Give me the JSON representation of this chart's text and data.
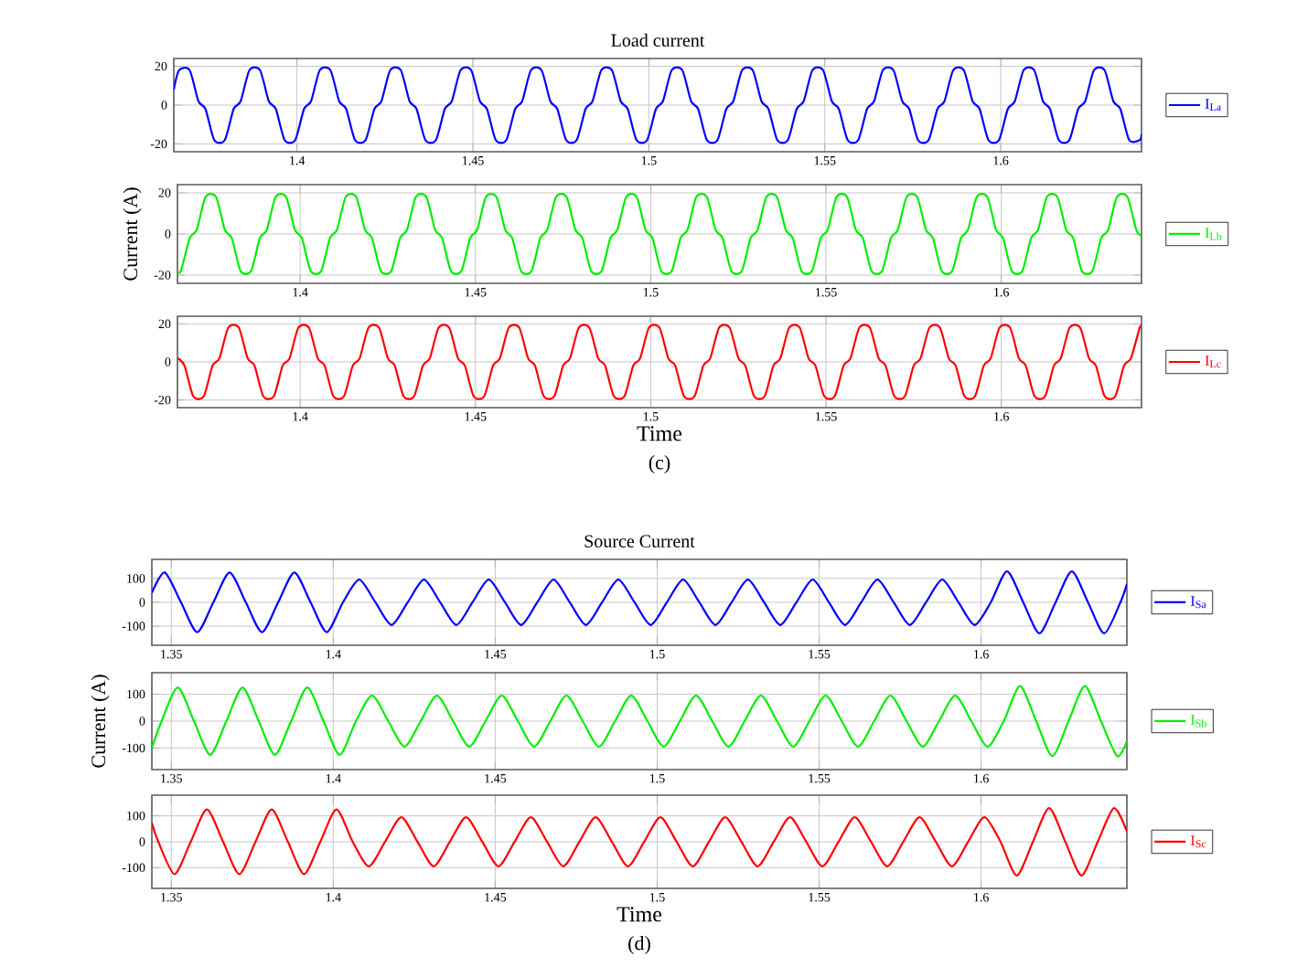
{
  "chart_data": [
    {
      "type": "line",
      "title": "Load current",
      "xlim": [
        1.365,
        1.64
      ],
      "ylim": [
        -24,
        24
      ],
      "xticks": [
        1.4,
        1.45,
        1.5,
        1.55,
        1.6
      ],
      "yticks": [
        -20,
        0,
        20
      ],
      "grid": true,
      "legend": "right",
      "series": [
        {
          "name": "I$_{La}$",
          "color": "#0000ff",
          "x": [
            1.365,
            1.3665,
            1.3695,
            1.372,
            1.374,
            1.3765,
            1.3795,
            1.382,
            1.384,
            1.3865,
            1.3895,
            1.392,
            1.394,
            1.3965,
            1.3995,
            1.402,
            1.404,
            1.4065,
            1.4095,
            1.412,
            1.414,
            1.4165,
            1.4195,
            1.422,
            1.424,
            1.4265,
            1.4295,
            1.432,
            1.434,
            1.4365,
            1.4395,
            1.442,
            1.444,
            1.4465,
            1.4495,
            1.452,
            1.454,
            1.4565,
            1.4595,
            1.462,
            1.464,
            1.4665,
            1.4695,
            1.472,
            1.474,
            1.4765,
            1.4795,
            1.482,
            1.484,
            1.4865,
            1.4895,
            1.492,
            1.494,
            1.4965,
            1.4995,
            1.502,
            1.504,
            1.5065,
            1.5095,
            1.512,
            1.514,
            1.5165,
            1.5195,
            1.522,
            1.524,
            1.5265,
            1.5295,
            1.532,
            1.534,
            1.5365,
            1.5395,
            1.542,
            1.544,
            1.5465,
            1.5495,
            1.552,
            1.554,
            1.5565,
            1.5595,
            1.562,
            1.564,
            1.5665,
            1.5695,
            1.572,
            1.574,
            1.5765,
            1.5795,
            1.582,
            1.584,
            1.5865,
            1.5895,
            1.592,
            1.594,
            1.5965,
            1.5995,
            1.602,
            1.604,
            1.6065,
            1.6095,
            1.612,
            1.614,
            1.6165,
            1.6195,
            1.622,
            1.624,
            1.6265,
            1.6295,
            1.632,
            1.634,
            1.6365,
            1.6395,
            1.64
          ],
          "values": [
            8,
            18,
            18,
            2,
            -2,
            -18,
            -18,
            -2,
            2,
            18,
            18,
            2,
            -2,
            -18,
            -18,
            -2,
            2,
            18,
            18,
            2,
            -2,
            -18,
            -18,
            -2,
            2,
            18,
            18,
            2,
            -2,
            -18,
            -18,
            -2,
            2,
            18,
            18,
            2,
            -2,
            -18,
            -18,
            -2,
            2,
            18,
            18,
            2,
            -2,
            -18,
            -18,
            -2,
            2,
            18,
            18,
            2,
            -2,
            -18,
            -18,
            -2,
            2,
            18,
            18,
            2,
            -2,
            -18,
            -18,
            -2,
            2,
            18,
            18,
            2,
            -2,
            -18,
            -18,
            -2,
            2,
            18,
            18,
            2,
            -2,
            -18,
            -18,
            -2,
            2,
            18,
            18,
            2,
            -2,
            -18,
            -18,
            -2,
            2,
            18,
            18,
            2,
            -2,
            -18,
            -18,
            -2,
            2,
            18,
            18,
            2,
            -2,
            -18,
            -18,
            -2,
            2,
            18,
            18,
            2,
            -2,
            -18,
            -18,
            -15
          ]
        }
      ]
    },
    {
      "type": "line",
      "ylabel": "Current (A)",
      "xlim": [
        1.365,
        1.64
      ],
      "ylim": [
        -24,
        24
      ],
      "xticks": [
        1.4,
        1.45,
        1.5,
        1.55,
        1.6
      ],
      "yticks": [
        -20,
        0,
        20
      ],
      "grid": true,
      "legend": "right",
      "series": [
        {
          "name": "I$_{Lb}$",
          "color": "#00ee00",
          "x": [
            1.365,
            1.366,
            1.3685,
            1.3705,
            1.373,
            1.376,
            1.3785,
            1.3805,
            1.383,
            1.386,
            1.3885,
            1.3905,
            1.393,
            1.396,
            1.3985,
            1.4005,
            1.403,
            1.406,
            1.4085,
            1.4105,
            1.413,
            1.416,
            1.4185,
            1.4205,
            1.423,
            1.426,
            1.4285,
            1.4305,
            1.433,
            1.436,
            1.4385,
            1.4405,
            1.443,
            1.446,
            1.4485,
            1.4505,
            1.453,
            1.456,
            1.4585,
            1.4605,
            1.463,
            1.466,
            1.4685,
            1.4705,
            1.473,
            1.476,
            1.4785,
            1.4805,
            1.483,
            1.486,
            1.4885,
            1.4905,
            1.493,
            1.496,
            1.4985,
            1.5005,
            1.503,
            1.506,
            1.5085,
            1.5105,
            1.513,
            1.516,
            1.5185,
            1.5205,
            1.523,
            1.526,
            1.5285,
            1.5305,
            1.533,
            1.536,
            1.5385,
            1.5405,
            1.543,
            1.546,
            1.5485,
            1.5505,
            1.553,
            1.556,
            1.5585,
            1.5605,
            1.563,
            1.566,
            1.5685,
            1.5705,
            1.573,
            1.576,
            1.5785,
            1.5805,
            1.583,
            1.586,
            1.5885,
            1.5905,
            1.593,
            1.596,
            1.5985,
            1.6005,
            1.603,
            1.606,
            1.6085,
            1.6105,
            1.613,
            1.616,
            1.6185,
            1.6205,
            1.623,
            1.626,
            1.6285,
            1.6305,
            1.633,
            1.636,
            1.6385,
            1.64
          ],
          "values": [
            -18,
            -18,
            -2,
            2,
            18,
            18,
            2,
            -2,
            -18,
            -18,
            -2,
            2,
            18,
            18,
            2,
            -2,
            -18,
            -18,
            -2,
            2,
            18,
            18,
            2,
            -2,
            -18,
            -18,
            -2,
            2,
            18,
            18,
            2,
            -2,
            -18,
            -18,
            -2,
            2,
            18,
            18,
            2,
            -2,
            -18,
            -18,
            -2,
            2,
            18,
            18,
            2,
            -2,
            -18,
            -18,
            -2,
            2,
            18,
            18,
            2,
            -2,
            -18,
            -18,
            -2,
            2,
            18,
            18,
            2,
            -2,
            -18,
            -18,
            -2,
            2,
            18,
            18,
            2,
            -2,
            -18,
            -18,
            -2,
            2,
            18,
            18,
            2,
            -2,
            -18,
            -18,
            -2,
            2,
            18,
            18,
            2,
            -2,
            -18,
            -18,
            -2,
            2,
            18,
            18,
            2,
            -2,
            -18,
            -18,
            -2,
            2,
            18,
            18,
            2,
            -2,
            -18,
            -18,
            -2,
            2,
            18,
            18,
            2,
            -1
          ]
        }
      ]
    },
    {
      "type": "line",
      "xlabel": "Time",
      "annotations": [
        "(c)"
      ],
      "xlim": [
        1.365,
        1.64
      ],
      "ylim": [
        -24,
        24
      ],
      "xticks": [
        1.4,
        1.45,
        1.5,
        1.55,
        1.6
      ],
      "yticks": [
        -20,
        0,
        20
      ],
      "grid": true,
      "legend": "right",
      "series": [
        {
          "name": "I$_{Lc}$",
          "color": "#ff0000",
          "x": [
            1.365,
            1.367,
            1.3695,
            1.3725,
            1.375,
            1.377,
            1.3795,
            1.3825,
            1.385,
            1.387,
            1.3895,
            1.3925,
            1.395,
            1.397,
            1.3995,
            1.4025,
            1.405,
            1.407,
            1.4095,
            1.4125,
            1.415,
            1.417,
            1.4195,
            1.4225,
            1.425,
            1.427,
            1.4295,
            1.4325,
            1.435,
            1.437,
            1.4395,
            1.4425,
            1.445,
            1.447,
            1.4495,
            1.4525,
            1.455,
            1.457,
            1.4595,
            1.4625,
            1.465,
            1.467,
            1.4695,
            1.4725,
            1.475,
            1.477,
            1.4795,
            1.4825,
            1.485,
            1.487,
            1.4895,
            1.4925,
            1.495,
            1.497,
            1.4995,
            1.5025,
            1.505,
            1.507,
            1.5095,
            1.5125,
            1.515,
            1.517,
            1.5195,
            1.5225,
            1.525,
            1.527,
            1.5295,
            1.5325,
            1.535,
            1.537,
            1.5395,
            1.5425,
            1.545,
            1.547,
            1.5495,
            1.5525,
            1.555,
            1.557,
            1.5595,
            1.5625,
            1.565,
            1.567,
            1.5695,
            1.5725,
            1.575,
            1.577,
            1.5795,
            1.5825,
            1.585,
            1.587,
            1.5895,
            1.5925,
            1.595,
            1.597,
            1.5995,
            1.6025,
            1.605,
            1.607,
            1.6095,
            1.6125,
            1.615,
            1.617,
            1.6195,
            1.6225,
            1.625,
            1.627,
            1.6295,
            1.6325,
            1.635,
            1.637,
            1.6395,
            1.64
          ],
          "values": [
            2,
            -2,
            -18,
            -18,
            -2,
            2,
            18,
            18,
            2,
            -2,
            -18,
            -18,
            -2,
            2,
            18,
            18,
            2,
            -2,
            -18,
            -18,
            -2,
            2,
            18,
            18,
            2,
            -2,
            -18,
            -18,
            -2,
            2,
            18,
            18,
            2,
            -2,
            -18,
            -18,
            -2,
            2,
            18,
            18,
            2,
            -2,
            -18,
            -18,
            -2,
            2,
            18,
            18,
            2,
            -2,
            -18,
            -18,
            -2,
            2,
            18,
            18,
            2,
            -2,
            -18,
            -18,
            -2,
            2,
            18,
            18,
            2,
            -2,
            -18,
            -18,
            -2,
            2,
            18,
            18,
            2,
            -2,
            -18,
            -18,
            -2,
            2,
            18,
            18,
            2,
            -2,
            -18,
            -18,
            -2,
            2,
            18,
            18,
            2,
            -2,
            -18,
            -18,
            -2,
            2,
            18,
            18,
            2,
            -2,
            -18,
            -18,
            -2,
            2,
            18,
            18,
            2,
            -2,
            -18,
            -18,
            -2,
            2,
            18,
            18
          ]
        }
      ]
    },
    {
      "type": "line",
      "title": "Source Current",
      "xlim": [
        1.344,
        1.645
      ],
      "ylim": [
        -180,
        180
      ],
      "xticks": [
        1.35,
        1.4,
        1.45,
        1.5,
        1.55,
        1.6
      ],
      "yticks": [
        -100,
        0,
        100
      ],
      "grid": true,
      "legend": "right",
      "series": [
        {
          "name": "I$_{Sa}$",
          "color": "#0000ff",
          "x": [
            1.344,
            1.348,
            1.353,
            1.358,
            1.363,
            1.368,
            1.373,
            1.378,
            1.383,
            1.388,
            1.393,
            1.398,
            1.403,
            1.408,
            1.413,
            1.418,
            1.423,
            1.428,
            1.433,
            1.438,
            1.443,
            1.448,
            1.453,
            1.458,
            1.463,
            1.468,
            1.473,
            1.478,
            1.483,
            1.488,
            1.493,
            1.498,
            1.503,
            1.508,
            1.513,
            1.518,
            1.523,
            1.528,
            1.533,
            1.538,
            1.543,
            1.548,
            1.553,
            1.558,
            1.563,
            1.568,
            1.573,
            1.578,
            1.583,
            1.588,
            1.593,
            1.598,
            1.603,
            1.608,
            1.613,
            1.618,
            1.623,
            1.628,
            1.633,
            1.638,
            1.643,
            1.645
          ],
          "values": [
            40,
            125,
            0,
            -125,
            0,
            125,
            0,
            -125,
            0,
            125,
            0,
            -125,
            0,
            95,
            0,
            -95,
            0,
            95,
            0,
            -95,
            0,
            95,
            0,
            -95,
            0,
            95,
            0,
            -95,
            0,
            95,
            0,
            -95,
            0,
            95,
            0,
            -95,
            0,
            95,
            0,
            -95,
            0,
            95,
            0,
            -95,
            0,
            95,
            0,
            -95,
            0,
            95,
            0,
            -95,
            0,
            130,
            0,
            -130,
            0,
            130,
            0,
            -130,
            0,
            76
          ]
        }
      ]
    },
    {
      "type": "line",
      "ylabel": "Current (A)",
      "xlim": [
        1.344,
        1.645
      ],
      "ylim": [
        -180,
        180
      ],
      "xticks": [
        1.35,
        1.4,
        1.45,
        1.5,
        1.55,
        1.6
      ],
      "yticks": [
        -100,
        0,
        100
      ],
      "grid": true,
      "legend": "right",
      "series": [
        {
          "name": "I$_{Sb}$",
          "color": "#00ee00",
          "x": [
            1.344,
            1.347,
            1.352,
            1.357,
            1.362,
            1.367,
            1.372,
            1.377,
            1.382,
            1.387,
            1.392,
            1.397,
            1.402,
            1.407,
            1.412,
            1.417,
            1.422,
            1.427,
            1.432,
            1.437,
            1.442,
            1.447,
            1.452,
            1.457,
            1.462,
            1.467,
            1.472,
            1.477,
            1.482,
            1.487,
            1.492,
            1.497,
            1.502,
            1.507,
            1.512,
            1.517,
            1.522,
            1.527,
            1.532,
            1.537,
            1.542,
            1.547,
            1.552,
            1.557,
            1.562,
            1.567,
            1.572,
            1.577,
            1.582,
            1.587,
            1.592,
            1.597,
            1.602,
            1.607,
            1.612,
            1.617,
            1.622,
            1.627,
            1.632,
            1.637,
            1.642,
            1.645
          ],
          "values": [
            -100,
            0,
            125,
            0,
            -125,
            0,
            125,
            0,
            -125,
            0,
            125,
            0,
            -125,
            0,
            95,
            0,
            -95,
            0,
            95,
            0,
            -95,
            0,
            95,
            0,
            -95,
            0,
            95,
            0,
            -95,
            0,
            95,
            0,
            -95,
            0,
            95,
            0,
            -95,
            0,
            95,
            0,
            -95,
            0,
            95,
            0,
            -95,
            0,
            95,
            0,
            -95,
            0,
            95,
            0,
            -95,
            0,
            130,
            0,
            -130,
            0,
            130,
            0,
            -130,
            -76
          ]
        }
      ]
    },
    {
      "type": "line",
      "xlabel": "Time",
      "annotations": [
        "(d)"
      ],
      "xlim": [
        1.344,
        1.645
      ],
      "ylim": [
        -180,
        180
      ],
      "xticks": [
        1.35,
        1.4,
        1.45,
        1.5,
        1.55,
        1.6
      ],
      "yticks": [
        -100,
        0,
        100
      ],
      "grid": true,
      "legend": "right",
      "series": [
        {
          "name": "I$_{Sc}$",
          "color": "#ff0000",
          "x": [
            1.344,
            1.346,
            1.351,
            1.356,
            1.361,
            1.366,
            1.371,
            1.376,
            1.381,
            1.386,
            1.391,
            1.396,
            1.401,
            1.406,
            1.411,
            1.416,
            1.421,
            1.426,
            1.431,
            1.436,
            1.441,
            1.446,
            1.451,
            1.456,
            1.461,
            1.466,
            1.471,
            1.476,
            1.481,
            1.486,
            1.491,
            1.496,
            1.501,
            1.506,
            1.511,
            1.516,
            1.521,
            1.526,
            1.531,
            1.536,
            1.541,
            1.546,
            1.551,
            1.556,
            1.561,
            1.566,
            1.571,
            1.576,
            1.581,
            1.586,
            1.591,
            1.596,
            1.601,
            1.606,
            1.611,
            1.616,
            1.621,
            1.626,
            1.631,
            1.636,
            1.641,
            1.645
          ],
          "values": [
            73,
            0,
            -125,
            0,
            125,
            0,
            -125,
            0,
            125,
            0,
            -125,
            0,
            125,
            0,
            -95,
            0,
            95,
            0,
            -95,
            0,
            95,
            0,
            -95,
            0,
            95,
            0,
            -95,
            0,
            95,
            0,
            -95,
            0,
            95,
            0,
            -95,
            0,
            95,
            0,
            -95,
            0,
            95,
            0,
            -95,
            0,
            95,
            0,
            -95,
            0,
            95,
            0,
            -95,
            0,
            95,
            0,
            -130,
            0,
            130,
            0,
            -130,
            0,
            130,
            40
          ]
        }
      ]
    }
  ]
}
